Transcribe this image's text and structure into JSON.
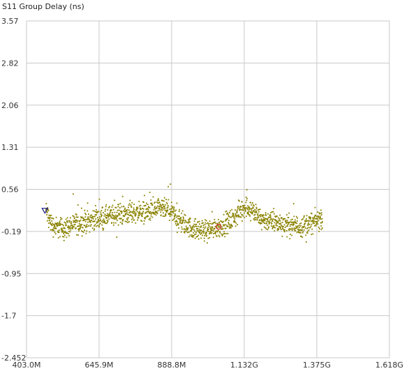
{
  "chart_data": {
    "type": "scatter",
    "title": "S11 Group Delay (ns)",
    "x_ticks": [
      "403.0M",
      "645.9M",
      "888.8M",
      "1.132G",
      "1.375G",
      "1.618G"
    ],
    "y_ticks": [
      "3.57",
      "2.82",
      "2.06",
      "1.31",
      "0.56",
      "-0.19",
      "-0.95",
      "-1.7",
      "-2.452"
    ],
    "xlim": [
      403.0,
      1618.0
    ],
    "ylim": [
      -2.452,
      3.57
    ],
    "x_unit": "MHz",
    "grid": true,
    "point_color": "#8a8200",
    "series_trace": {
      "x_start": 468,
      "x_end": 1394,
      "n_points": 1500,
      "spread": 0.09,
      "outlier_fraction": 0.06,
      "profile": [
        [
          468,
          0.18
        ],
        [
          485,
          -0.05
        ],
        [
          500,
          -0.12
        ],
        [
          530,
          -0.13
        ],
        [
          560,
          -0.07
        ],
        [
          600,
          -0.02
        ],
        [
          640,
          0.04
        ],
        [
          680,
          0.08
        ],
        [
          720,
          0.12
        ],
        [
          760,
          0.14
        ],
        [
          800,
          0.16
        ],
        [
          830,
          0.18
        ],
        [
          860,
          0.21
        ],
        [
          880,
          0.18
        ],
        [
          900,
          0.08
        ],
        [
          930,
          -0.06
        ],
        [
          960,
          -0.15
        ],
        [
          1000,
          -0.17
        ],
        [
          1040,
          -0.12
        ],
        [
          1070,
          -0.06
        ],
        [
          1100,
          0.05
        ],
        [
          1120,
          0.19
        ],
        [
          1140,
          0.26
        ],
        [
          1160,
          0.18
        ],
        [
          1180,
          0.05
        ],
        [
          1200,
          0.01
        ],
        [
          1240,
          -0.03
        ],
        [
          1280,
          -0.08
        ],
        [
          1320,
          -0.1
        ],
        [
          1360,
          -0.04
        ],
        [
          1394,
          0.05
        ]
      ]
    },
    "markers": [
      {
        "type": "triangle",
        "x": 464.5,
        "y": 0.17,
        "color": "#1a1a8c"
      },
      {
        "type": "circle",
        "x": 1046,
        "y": -0.11,
        "color": "#d03030"
      }
    ]
  }
}
